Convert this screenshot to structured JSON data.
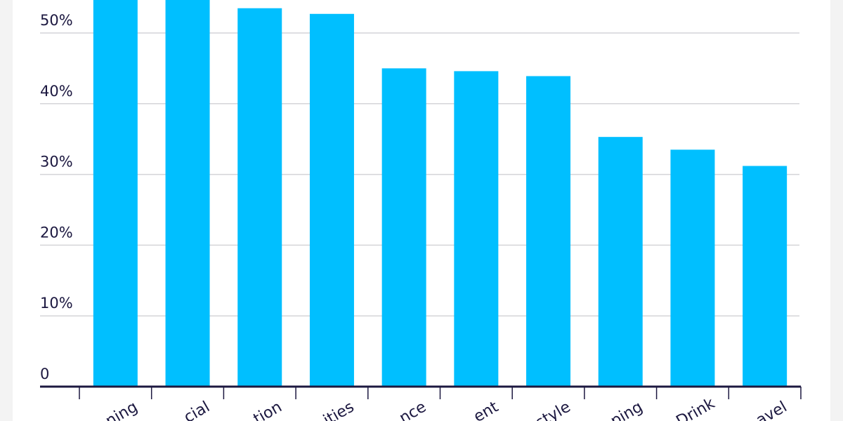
{
  "chart_data": {
    "type": "bar",
    "categories": [
      "ning",
      "cial",
      "tion",
      "ities",
      "nce",
      "ent",
      "style",
      "ping",
      "Drink",
      "avel"
    ],
    "values": [
      56,
      56,
      53.5,
      52.7,
      45.0,
      44.6,
      43.9,
      35.3,
      33.5,
      31.2
    ],
    "ylim": [
      0,
      55
    ],
    "yticks": [
      0,
      10,
      20,
      30,
      40,
      50
    ],
    "ytick_labels": [
      "0",
      "10%",
      "20%",
      "30%",
      "40%",
      "50%"
    ],
    "grid": true,
    "bar_color": "#00bfff",
    "axis_color": "#1c1840",
    "grid_color": "#d4d4d8"
  }
}
